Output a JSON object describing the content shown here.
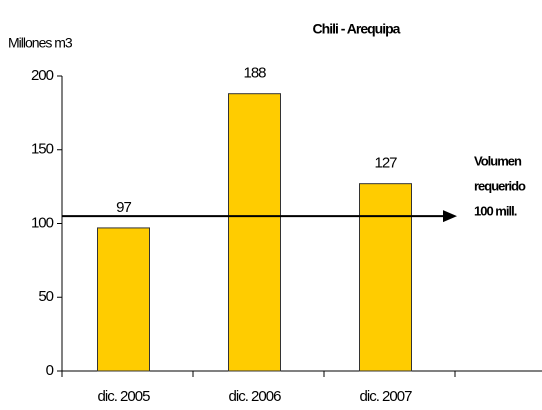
{
  "chart_data": {
    "type": "bar",
    "title": "Chili - Arequipa",
    "y_label": "Millones m3",
    "categories": [
      "dic. 2005",
      "dic. 2006",
      "dic. 2007",
      null
    ],
    "values": [
      97,
      188,
      127,
      null
    ],
    "color": "#ffcc00",
    "ylim": [
      0,
      200
    ],
    "yticks": [
      0,
      50,
      100,
      150,
      200
    ],
    "grid": false,
    "reference_line": {
      "value": 105,
      "color": "#000000",
      "label": [
        "Volumen",
        "requerido",
        "100 mill."
      ]
    }
  }
}
